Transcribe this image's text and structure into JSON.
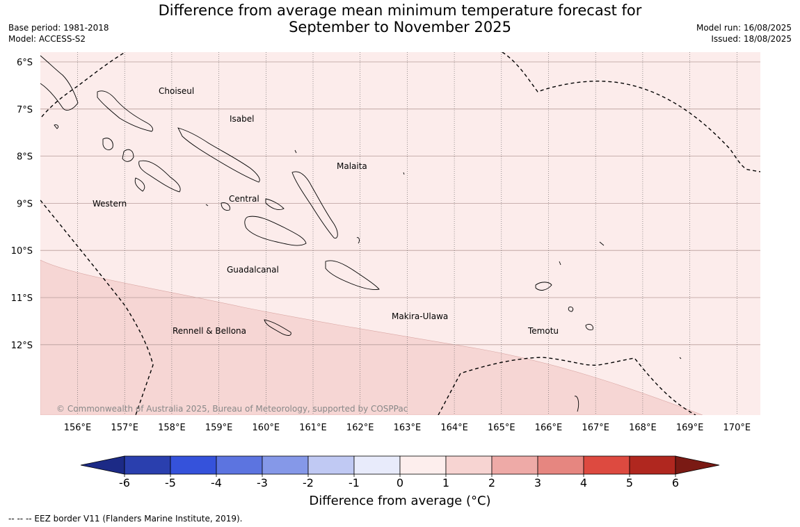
{
  "title": {
    "line1": "Difference from average mean minimum temperature forecast for",
    "line2": "September to November 2025"
  },
  "meta": {
    "base_period": "Base period: 1981-2018",
    "model": "Model: ACCESS-S2",
    "model_run": "Model run: 16/08/2025",
    "issued": "Issued: 18/08/2025"
  },
  "map": {
    "lat_labels": [
      "6°S",
      "7°S",
      "8°S",
      "9°S",
      "10°S",
      "11°S",
      "12°S"
    ],
    "lon_labels": [
      "156°E",
      "157°E",
      "158°E",
      "159°E",
      "160°E",
      "161°E",
      "162°E",
      "163°E",
      "164°E",
      "165°E",
      "166°E",
      "167°E",
      "168°E",
      "169°E",
      "170°E"
    ],
    "region_labels": [
      "Choiseul",
      "Isabel",
      "Malaita",
      "Western",
      "Central",
      "Guadalcanal",
      "Makira-Ulawa",
      "Rennell & Bellona",
      "Temotu"
    ],
    "copyright": "© Commonwealth of Australia 2025, Bureau of Meteorology, supported by COSPPac",
    "fill_colors": {
      "band_0_1": "#fceceb",
      "band_1_2": "#f6d6d4"
    }
  },
  "colorbar": {
    "ticks": [
      "-6",
      "-5",
      "-4",
      "-3",
      "-2",
      "-1",
      "0",
      "1",
      "2",
      "3",
      "4",
      "5",
      "6"
    ],
    "colors": [
      "#1c2a86",
      "#2a3fae",
      "#3552db",
      "#5c74e0",
      "#8598e8",
      "#c0c9f3",
      "#e8ebfb",
      "#fdeeed",
      "#f7d4d2",
      "#eeaaa7",
      "#e68680",
      "#dd4a40",
      "#b0271f",
      "#7a1a14"
    ],
    "label": "Difference from average (°C)"
  },
  "footnote": "--  --  -- EEZ border V11 (Flanders Marine Institute, 2019)."
}
